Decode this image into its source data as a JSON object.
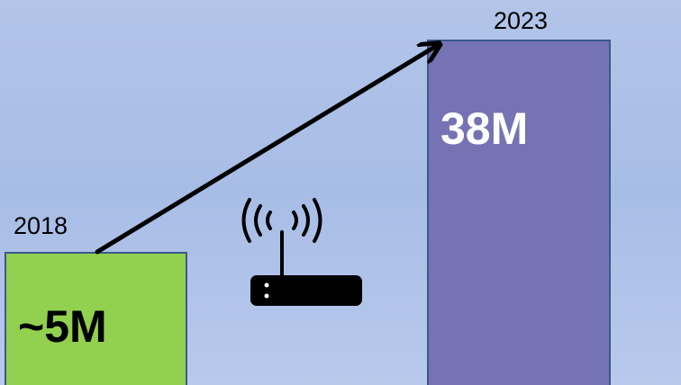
{
  "items": [
    {
      "year": "2018",
      "label": "~5M"
    },
    {
      "year": "2023",
      "label": "38M"
    }
  ]
}
